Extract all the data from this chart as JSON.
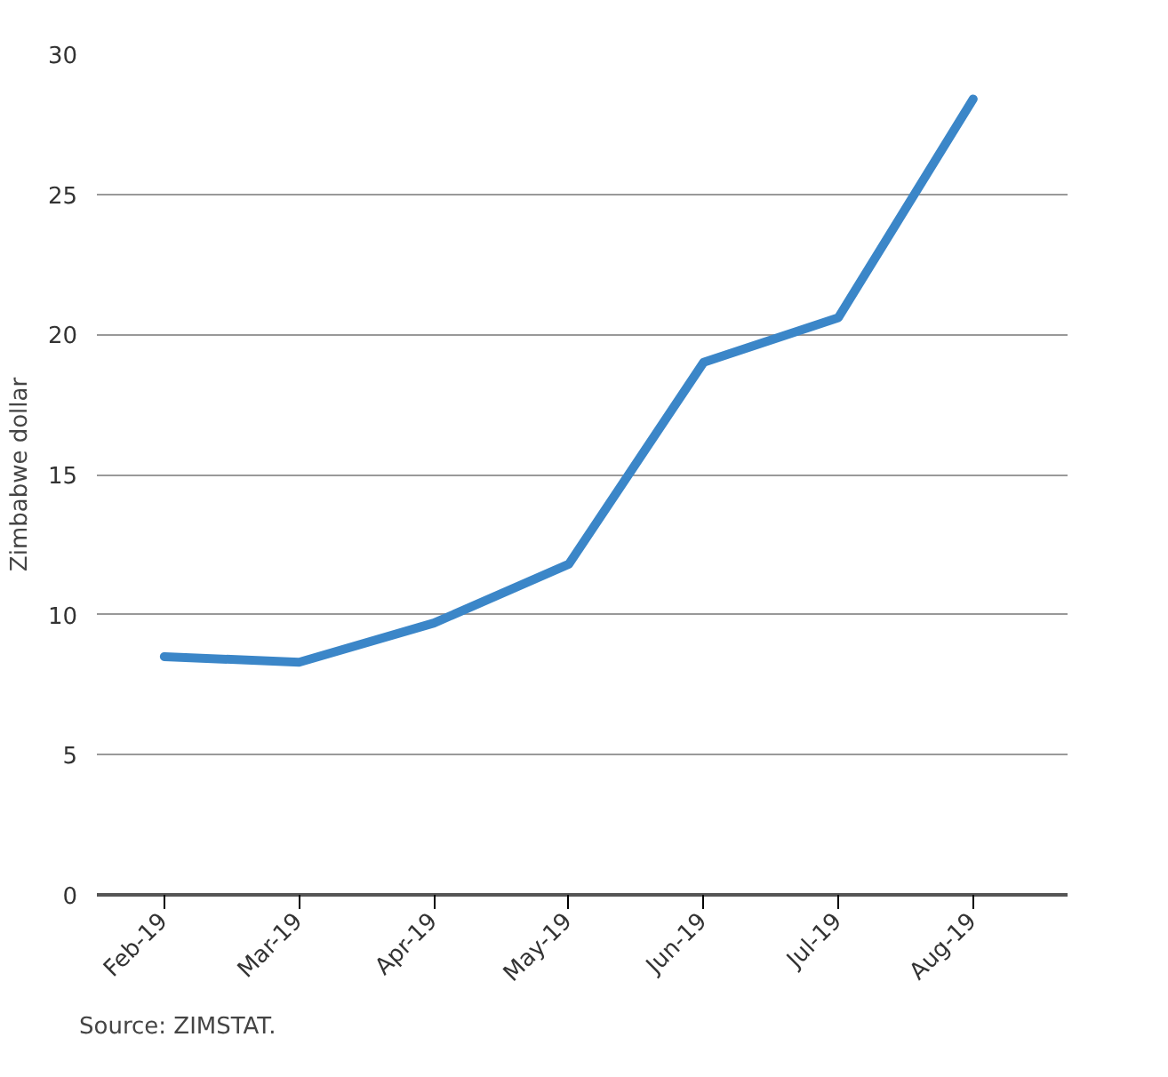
{
  "chart_data": {
    "type": "line",
    "ylabel": "Zimbabwe dollar",
    "categories": [
      "Feb-19",
      "Mar-19",
      "Apr-19",
      "May-19",
      "Jun-19",
      "Jul-19",
      "Aug-19"
    ],
    "series": [
      {
        "color": "#3b86c8",
        "values": [
          8.5,
          8.3,
          9.7,
          11.8,
          19.0,
          20.6,
          28.4
        ]
      }
    ],
    "ylim": [
      0,
      30
    ],
    "yticks": [
      0,
      5,
      10,
      15,
      20,
      25,
      30
    ],
    "grid": "y",
    "annotations": [
      "Source: ZIMSTAT."
    ]
  }
}
